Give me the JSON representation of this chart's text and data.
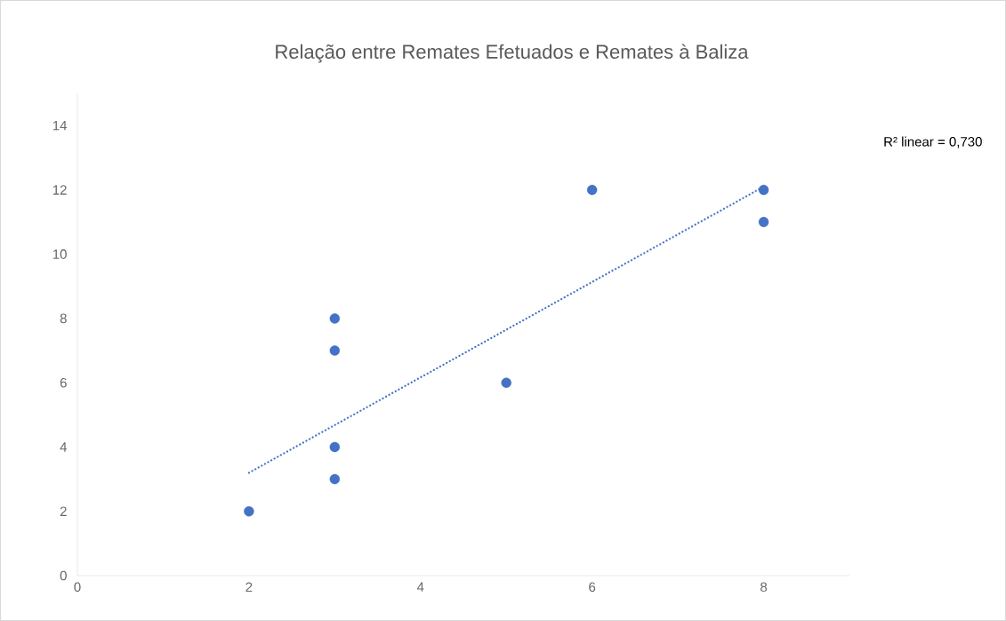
{
  "chart_data": {
    "type": "scatter",
    "title": "Relação entre Remates Efetuados e Remates à Baliza",
    "xlim": [
      0,
      9
    ],
    "ylim": [
      0,
      15
    ],
    "xticks": [
      0,
      2,
      4,
      6,
      8
    ],
    "yticks": [
      0,
      2,
      4,
      6,
      8,
      10,
      12,
      14
    ],
    "grid": false,
    "series": [
      {
        "color": "#4472c4",
        "marker": "circle",
        "x": [
          2,
          3,
          3,
          3,
          3,
          5,
          6,
          8,
          8
        ],
        "values": [
          2,
          3,
          4,
          7,
          8,
          6,
          12,
          12,
          11
        ]
      },
      {
        "type": "line",
        "color": "#4472c4",
        "line_style": "dotted",
        "marker": "none",
        "x": [
          2,
          8
        ],
        "values": [
          3.2,
          12.1
        ]
      }
    ],
    "annotations": [
      "R² linear = 0,730"
    ]
  }
}
